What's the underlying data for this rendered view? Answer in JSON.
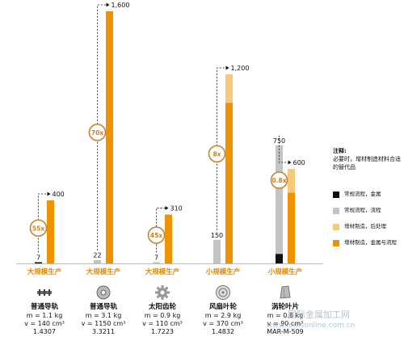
{
  "chart_data": {
    "type": "bar",
    "ylim": [
      0,
      1600
    ],
    "categories": [
      {
        "label": "大规模生产",
        "name": "普通导轨",
        "mass": "m = 1.1 kg",
        "volume": "v = 140 cm³",
        "code": "1.4307",
        "conventional_value": 7,
        "conventional_label": "7",
        "am_value": 400,
        "am_label": "400",
        "am_post_value": 0,
        "factor": "55x",
        "conventional_type": "metal"
      },
      {
        "label": "大规模生产",
        "name": "普通导轨",
        "mass": "m = 3.1 kg",
        "volume": "v = 1150 cm³",
        "code": "3.3211",
        "conventional_value": 22,
        "conventional_label": "22",
        "am_value": 1600,
        "am_label": "1,600",
        "am_post_value": 0,
        "factor": "70x",
        "conventional_type": "grey"
      },
      {
        "label": "大规模生产",
        "name": "太阳齿轮",
        "mass": "m = 0.9 kg",
        "volume": "v = 110 cm³",
        "code": "1.7223",
        "conventional_value": 7,
        "conventional_label": "7",
        "am_value": 310,
        "am_label": "310",
        "am_post_value": 0,
        "factor": "45x",
        "conventional_type": "grey"
      },
      {
        "label": "小规模生产",
        "name": "风扇叶轮",
        "mass": "m = 2.9 kg",
        "volume": "v = 370 cm³",
        "code": "1.4832",
        "conventional_value": 150,
        "conventional_label": "150",
        "am_value": 1020,
        "am_label": "1,200",
        "am_post_value": 180,
        "factor": "8x",
        "conventional_type": "grey"
      },
      {
        "label": "小规模生产",
        "name": "涡轮叶片",
        "mass": "m = 0.8 kg",
        "volume": "v = 90 cm³",
        "code": "MAR-M-509",
        "conventional_value": 750,
        "conventional_label": "750",
        "conventional_metal_value": 60,
        "am_value": 450,
        "am_label": "600",
        "am_post_value": 150,
        "factor": "0.8x",
        "conventional_type": "grey"
      }
    ]
  },
  "note": {
    "title": "注释:",
    "text": "必要时，增材制造材料合适的替代品"
  },
  "legend": [
    {
      "label": "常规流程，金属",
      "color": "#111111"
    },
    {
      "label": "常规流程，流程",
      "color": "#c4c4c4"
    },
    {
      "label": "增材制造，后处理",
      "color": "#f7c97a"
    },
    {
      "label": "增材制造，金属与流程",
      "color": "#ee9200"
    }
  ],
  "colors": {
    "orange": "#ee9200",
    "light_orange": "#f7c97a",
    "grey": "#c4c4c4",
    "black": "#111111",
    "factor_ring": "#c8842a"
  },
  "watermark": {
    "line1": "国际金属加工网",
    "line2": "www.mmsonline.com.cn"
  }
}
